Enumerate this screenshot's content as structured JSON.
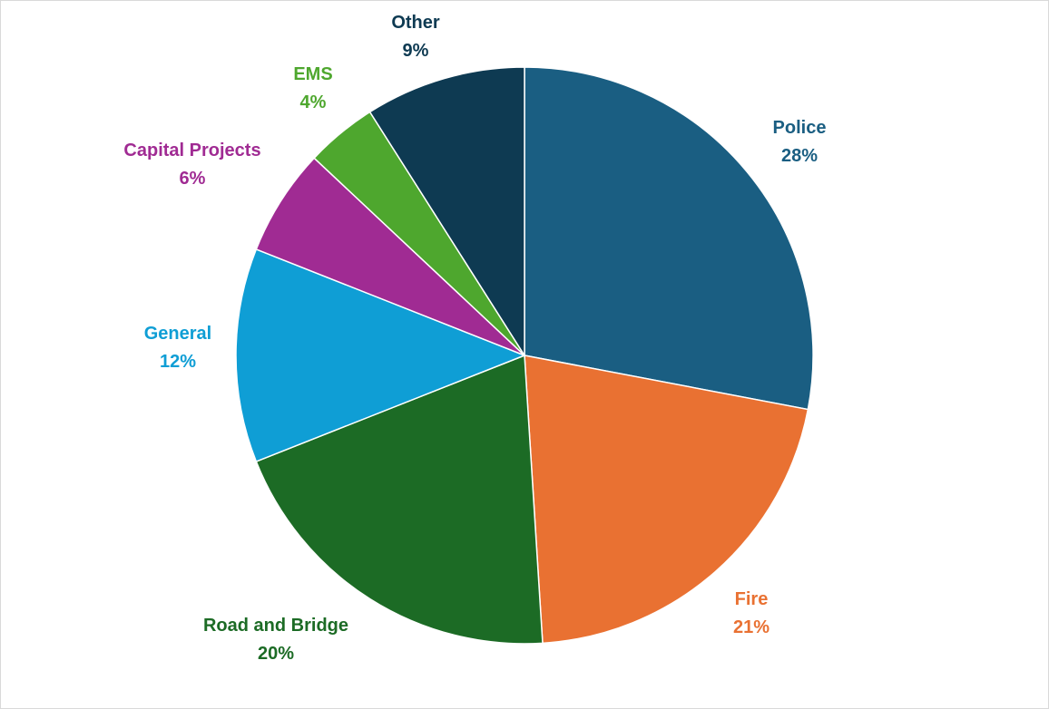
{
  "chart_data": {
    "type": "pie",
    "title": "",
    "start": "12 o'clock",
    "direction": "clockwise",
    "slices": [
      {
        "label": "Police",
        "value": 28,
        "display": "28%",
        "color": "#1a5e82"
      },
      {
        "label": "Fire",
        "value": 21,
        "display": "21%",
        "color": "#e97132"
      },
      {
        "label": "Road and Bridge",
        "value": 20,
        "display": "20%",
        "color": "#1c6b25"
      },
      {
        "label": "General",
        "value": 12,
        "display": "12%",
        "color": "#0f9ed5"
      },
      {
        "label": "Capital Projects",
        "value": 6,
        "display": "6%",
        "color": "#a02b93"
      },
      {
        "label": "EMS",
        "value": 4,
        "display": "4%",
        "color": "#4ea72e"
      },
      {
        "label": "Other",
        "value": 9,
        "display": "9%",
        "color": "#0e3a52"
      }
    ]
  }
}
